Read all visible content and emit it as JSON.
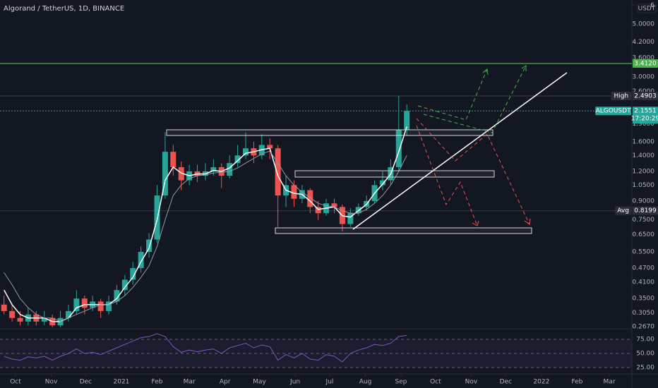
{
  "chart_data": [
    {
      "type": "candlestick",
      "title": "Algorand / TetherUS, 1D, BINANCE",
      "unit": "USDT",
      "up_color": "#26a69a",
      "down_color": "#ef5350",
      "log_scale": true,
      "xlim": [
        -13.5,
        535.6
      ],
      "xticks": [
        {
          "value": 0,
          "label": "Oct"
        },
        {
          "value": 31,
          "label": "Nov"
        },
        {
          "value": 61,
          "label": "Dec"
        },
        {
          "value": 92,
          "label": "2021"
        },
        {
          "value": 123,
          "label": "Feb"
        },
        {
          "value": 151,
          "label": "Mar"
        },
        {
          "value": 182,
          "label": "Apr"
        },
        {
          "value": 212,
          "label": "May"
        },
        {
          "value": 243,
          "label": "Jun"
        },
        {
          "value": 273,
          "label": "Jul"
        },
        {
          "value": 304,
          "label": "Aug"
        },
        {
          "value": 335,
          "label": "Sep"
        },
        {
          "value": 365,
          "label": "Oct"
        },
        {
          "value": 396,
          "label": "Nov"
        },
        {
          "value": 426,
          "label": "Dec"
        },
        {
          "value": 457,
          "label": "2022"
        },
        {
          "value": 488,
          "label": "Feb"
        },
        {
          "value": 516,
          "label": "Mar"
        }
      ],
      "ylim": [
        0.263,
        6.31
      ],
      "yticks": [
        6,
        {
          "value": 5,
          "label": "5.0000"
        },
        {
          "value": 4.2,
          "label": "4.2000"
        },
        {
          "value": 3.6,
          "label": "3.6000"
        },
        {
          "value": 3,
          "label": "3.0000"
        },
        {
          "value": 2.6,
          "label": "2.6000"
        },
        {
          "value": 1.9,
          "label": "1.9000"
        },
        {
          "value": 1.6,
          "label": "1.6000"
        },
        {
          "value": 1.4,
          "label": "1.4000"
        },
        {
          "value": 1.2,
          "label": "1.2000"
        },
        {
          "value": 1.05,
          "label": "1.0500"
        },
        {
          "value": 0.9,
          "label": "0.9000"
        },
        {
          "value": 0.75,
          "label": "0.7500"
        },
        {
          "value": 0.65,
          "label": "0.6500"
        },
        {
          "value": 0.55,
          "label": "0.5500"
        },
        {
          "value": 0.47,
          "label": "0.4700"
        },
        {
          "value": 0.41,
          "label": "0.4100"
        },
        {
          "value": 0.35,
          "label": "0.3500"
        },
        {
          "value": 0.305,
          "label": "0.3050"
        },
        {
          "value": 0.267,
          "label": "0.2670"
        }
      ],
      "x": [
        -10,
        -3,
        4,
        11,
        18,
        25,
        32,
        39,
        46,
        53,
        60,
        67,
        74,
        81,
        88,
        95,
        102,
        109,
        116,
        123,
        130,
        137,
        144,
        151,
        158,
        165,
        172,
        179,
        186,
        193,
        200,
        207,
        214,
        221,
        228,
        235,
        242,
        249,
        256,
        263,
        270,
        277,
        284,
        291,
        298,
        305,
        312,
        319,
        326,
        333,
        340
      ],
      "open": [
        0.33,
        0.31,
        0.29,
        0.28,
        0.3,
        0.28,
        0.29,
        0.27,
        0.29,
        0.31,
        0.35,
        0.32,
        0.34,
        0.31,
        0.34,
        0.38,
        0.42,
        0.47,
        0.55,
        0.62,
        0.95,
        1.45,
        1.25,
        1.1,
        1.2,
        1.15,
        1.2,
        1.25,
        1.15,
        1.3,
        1.4,
        1.5,
        1.4,
        1.55,
        1.5,
        0.95,
        1.05,
        0.92,
        1.0,
        0.85,
        0.8,
        0.88,
        0.85,
        0.72,
        0.8,
        0.85,
        0.9,
        1.05,
        1.1,
        1.25,
        1.8
      ],
      "high": [
        0.36,
        0.33,
        0.31,
        0.32,
        0.31,
        0.31,
        0.3,
        0.31,
        0.33,
        0.38,
        0.36,
        0.36,
        0.35,
        0.36,
        0.4,
        0.44,
        0.5,
        0.58,
        0.66,
        1.05,
        1.75,
        1.55,
        1.32,
        1.28,
        1.28,
        1.3,
        1.35,
        1.3,
        1.4,
        1.55,
        1.75,
        1.6,
        1.72,
        1.65,
        1.55,
        1.15,
        1.1,
        1.05,
        1.02,
        0.9,
        0.92,
        0.92,
        0.87,
        0.84,
        0.88,
        0.95,
        1.1,
        1.2,
        1.35,
        2.49,
        2.3
      ],
      "low": [
        0.3,
        0.28,
        0.27,
        0.27,
        0.27,
        0.27,
        0.265,
        0.265,
        0.28,
        0.3,
        0.3,
        0.31,
        0.29,
        0.3,
        0.33,
        0.36,
        0.4,
        0.45,
        0.52,
        0.6,
        0.92,
        1.15,
        1.0,
        1.05,
        1.08,
        1.1,
        1.15,
        1.02,
        1.12,
        1.25,
        1.35,
        1.3,
        1.35,
        1.35,
        0.7,
        0.85,
        0.85,
        0.88,
        0.8,
        0.75,
        0.78,
        0.8,
        0.67,
        0.7,
        0.78,
        0.82,
        0.88,
        1.0,
        1.05,
        1.2,
        1.7
      ],
      "close": [
        0.31,
        0.29,
        0.28,
        0.3,
        0.28,
        0.29,
        0.27,
        0.29,
        0.31,
        0.35,
        0.32,
        0.34,
        0.31,
        0.34,
        0.38,
        0.42,
        0.47,
        0.55,
        0.62,
        0.95,
        1.45,
        1.25,
        1.1,
        1.2,
        1.15,
        1.2,
        1.25,
        1.15,
        1.3,
        1.4,
        1.5,
        1.4,
        1.55,
        1.5,
        0.95,
        1.05,
        0.92,
        1.0,
        0.85,
        0.8,
        0.88,
        0.85,
        0.72,
        0.8,
        0.85,
        0.9,
        1.05,
        1.1,
        1.25,
        1.8,
        2.1551
      ],
      "series": [
        {
          "color": "#ffffff",
          "values": [
            0.38,
            0.33,
            0.3,
            0.29,
            0.29,
            0.29,
            0.28,
            0.28,
            0.29,
            0.32,
            0.33,
            0.33,
            0.33,
            0.33,
            0.35,
            0.39,
            0.43,
            0.5,
            0.57,
            0.75,
            1.1,
            1.25,
            1.18,
            1.15,
            1.17,
            1.17,
            1.21,
            1.2,
            1.24,
            1.33,
            1.43,
            1.45,
            1.48,
            1.5,
            1.15,
            1.0,
            0.97,
            0.96,
            0.9,
            0.83,
            0.84,
            0.85,
            0.78,
            0.77,
            0.82,
            0.87,
            0.97,
            1.06,
            1.17,
            1.45,
            1.85
          ]
        },
        {
          "color": "#9598a1",
          "values": [
            0.45,
            0.4,
            0.35,
            0.32,
            0.3,
            0.29,
            0.29,
            0.28,
            0.29,
            0.3,
            0.31,
            0.32,
            0.33,
            0.33,
            0.34,
            0.36,
            0.39,
            0.43,
            0.48,
            0.58,
            0.75,
            0.95,
            1.05,
            1.12,
            1.15,
            1.16,
            1.18,
            1.19,
            1.2,
            1.24,
            1.3,
            1.36,
            1.42,
            1.46,
            1.3,
            1.15,
            1.05,
            0.98,
            0.93,
            0.88,
            0.86,
            0.85,
            0.82,
            0.8,
            0.8,
            0.83,
            0.88,
            0.95,
            1.05,
            1.2,
            1.4
          ]
        }
      ],
      "price_lines": [
        {
          "value": 3.412,
          "label": "3.4120",
          "color": "#4caf50"
        },
        {
          "name": "High",
          "value": 2.4903,
          "label": "2.4903",
          "color": "#2a2e39"
        },
        {
          "name": "ALGOUSDT",
          "value": 2.1551,
          "label": "2.1551",
          "countdown": "17:20:29",
          "color": "#26a69a"
        },
        {
          "name": "Avg",
          "value": 0.8199,
          "label": "0.8199",
          "color": "#2a2e39"
        }
      ]
    },
    {
      "type": "line",
      "color": "#7e57c2",
      "ylim": [
        13.75,
        91.25
      ],
      "yticks": [
        {
          "value": 75,
          "label": "75.00"
        },
        {
          "value": 50,
          "label": "50.00"
        },
        {
          "value": 25,
          "label": "25.00"
        }
      ],
      "values": [
        45,
        40,
        38,
        44,
        42,
        45,
        38,
        45,
        50,
        58,
        50,
        52,
        48,
        54,
        60,
        66,
        72,
        78,
        80,
        85,
        80,
        62,
        52,
        56,
        53,
        56,
        58,
        50,
        60,
        64,
        68,
        60,
        65,
        62,
        38,
        48,
        42,
        50,
        40,
        38,
        48,
        45,
        35,
        50,
        56,
        60,
        66,
        64,
        68,
        80,
        82
      ]
    }
  ]
}
